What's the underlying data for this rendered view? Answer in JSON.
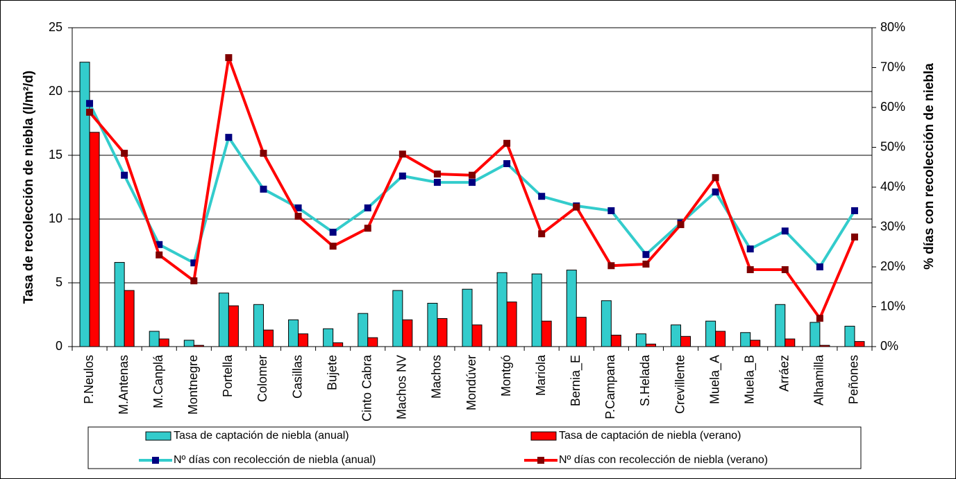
{
  "chart_data": {
    "type": "bar",
    "y_label": "Tasa de recolección de niebla (l/m²/d)",
    "y2_label": "% días con recolección de niebla",
    "categories": [
      "P.Neulos",
      "M.Antenas",
      "M.Canplá",
      "Montnegre",
      "Portella",
      "Colomer",
      "Casillas",
      "Bujete",
      "Cinto Cabra",
      "Machos NV",
      "Machos",
      "Mondúver",
      "Montgó",
      "Mariola",
      "Bernia_E",
      "P.Campana",
      "S.Helada",
      "Crevillente",
      "Muela_A",
      "Muela_B",
      "Arráez",
      "Alhamilla",
      "Peñones"
    ],
    "series": [
      {
        "name": "Tasa de captación de niebla (anual)",
        "type": "bar",
        "color": "#33cccc",
        "values": [
          22.3,
          6.6,
          1.2,
          0.5,
          4.2,
          3.3,
          2.1,
          1.4,
          2.6,
          4.4,
          3.4,
          4.5,
          5.8,
          5.7,
          6.0,
          3.6,
          1.0,
          1.7,
          2.0,
          1.1,
          3.3,
          1.9,
          1.6
        ]
      },
      {
        "name": "Tasa de captación de niebla (verano)",
        "type": "bar",
        "color": "#ff0000",
        "values": [
          16.8,
          4.4,
          0.6,
          0.1,
          3.2,
          1.3,
          1.0,
          0.3,
          0.7,
          2.1,
          2.2,
          1.7,
          3.5,
          2.0,
          2.3,
          0.9,
          0.2,
          0.8,
          1.2,
          0.5,
          0.6,
          0.1,
          0.4
        ]
      },
      {
        "name": "Nº días con recolección de niebla (anual)",
        "type": "line",
        "axis": "y2",
        "color": "#33cccc",
        "marker_color": "#000080",
        "values": [
          61,
          43,
          25.6,
          21,
          52.5,
          39.5,
          34.8,
          28.7,
          34.8,
          42.8,
          41.2,
          41.2,
          45.9,
          37.7,
          35.3,
          34.1,
          23.1,
          31,
          38.8,
          24.5,
          29,
          20,
          34.1
        ]
      },
      {
        "name": "Nº días con recolección de niebla (verano)",
        "type": "line",
        "axis": "y2",
        "color": "#ff0000",
        "marker_color": "#800000",
        "values": [
          58.8,
          48.5,
          23,
          16.5,
          72.5,
          48.5,
          32.7,
          25.2,
          29.7,
          48.3,
          43.3,
          43,
          51,
          28.3,
          35,
          20.3,
          20.7,
          30.6,
          42.4,
          19.3,
          19.3,
          7.1,
          27.5
        ]
      }
    ],
    "ylim": [
      0,
      25
    ],
    "yticks": [
      0,
      5,
      10,
      15,
      20,
      25
    ],
    "y2lim": [
      0,
      80
    ],
    "y2ticks": [
      {
        "value": 0,
        "label": "0%"
      },
      {
        "value": 10,
        "label": "10%"
      },
      {
        "value": 20,
        "label": "20%"
      },
      {
        "value": 30,
        "label": "30%"
      },
      {
        "value": 40,
        "label": "40%"
      },
      {
        "value": 50,
        "label": "50%"
      },
      {
        "value": 60,
        "label": "60%"
      },
      {
        "value": 70,
        "label": "70%"
      },
      {
        "value": 80,
        "label": "80%"
      }
    ],
    "grid": true
  }
}
